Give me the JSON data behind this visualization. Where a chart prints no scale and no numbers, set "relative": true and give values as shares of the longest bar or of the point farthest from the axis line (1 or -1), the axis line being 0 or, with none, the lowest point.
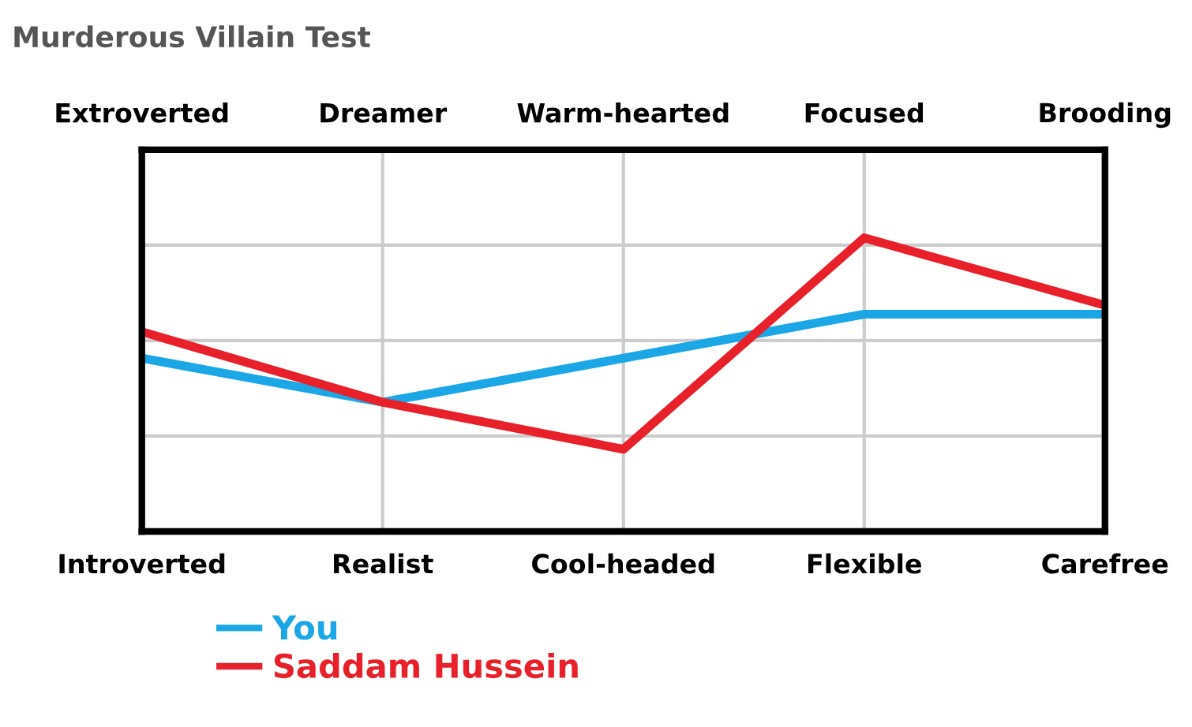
{
  "chart_data": {
    "type": "line",
    "title": "Murderous Villain Test",
    "relative": true,
    "categories": [
      "Introverted",
      "Realist",
      "Cool-headed",
      "Flexible",
      "Carefree"
    ],
    "annotations": [
      "Extroverted",
      "Dreamer",
      "Warm-hearted",
      "Focused",
      "Brooding"
    ],
    "series": [
      {
        "name": "You",
        "color": "#1ba7e6",
        "values": [
          0.59,
          0.44,
          0.59,
          0.74,
          0.74
        ]
      },
      {
        "name": "Saddam Hussein",
        "color": "#e8202a",
        "values": [
          0.68,
          0.44,
          0.28,
          1.0,
          0.77
        ]
      }
    ],
    "grid": true,
    "legend": "bottom",
    "tick_labels": "x",
    "marker": "none",
    "line_style": "solid"
  }
}
